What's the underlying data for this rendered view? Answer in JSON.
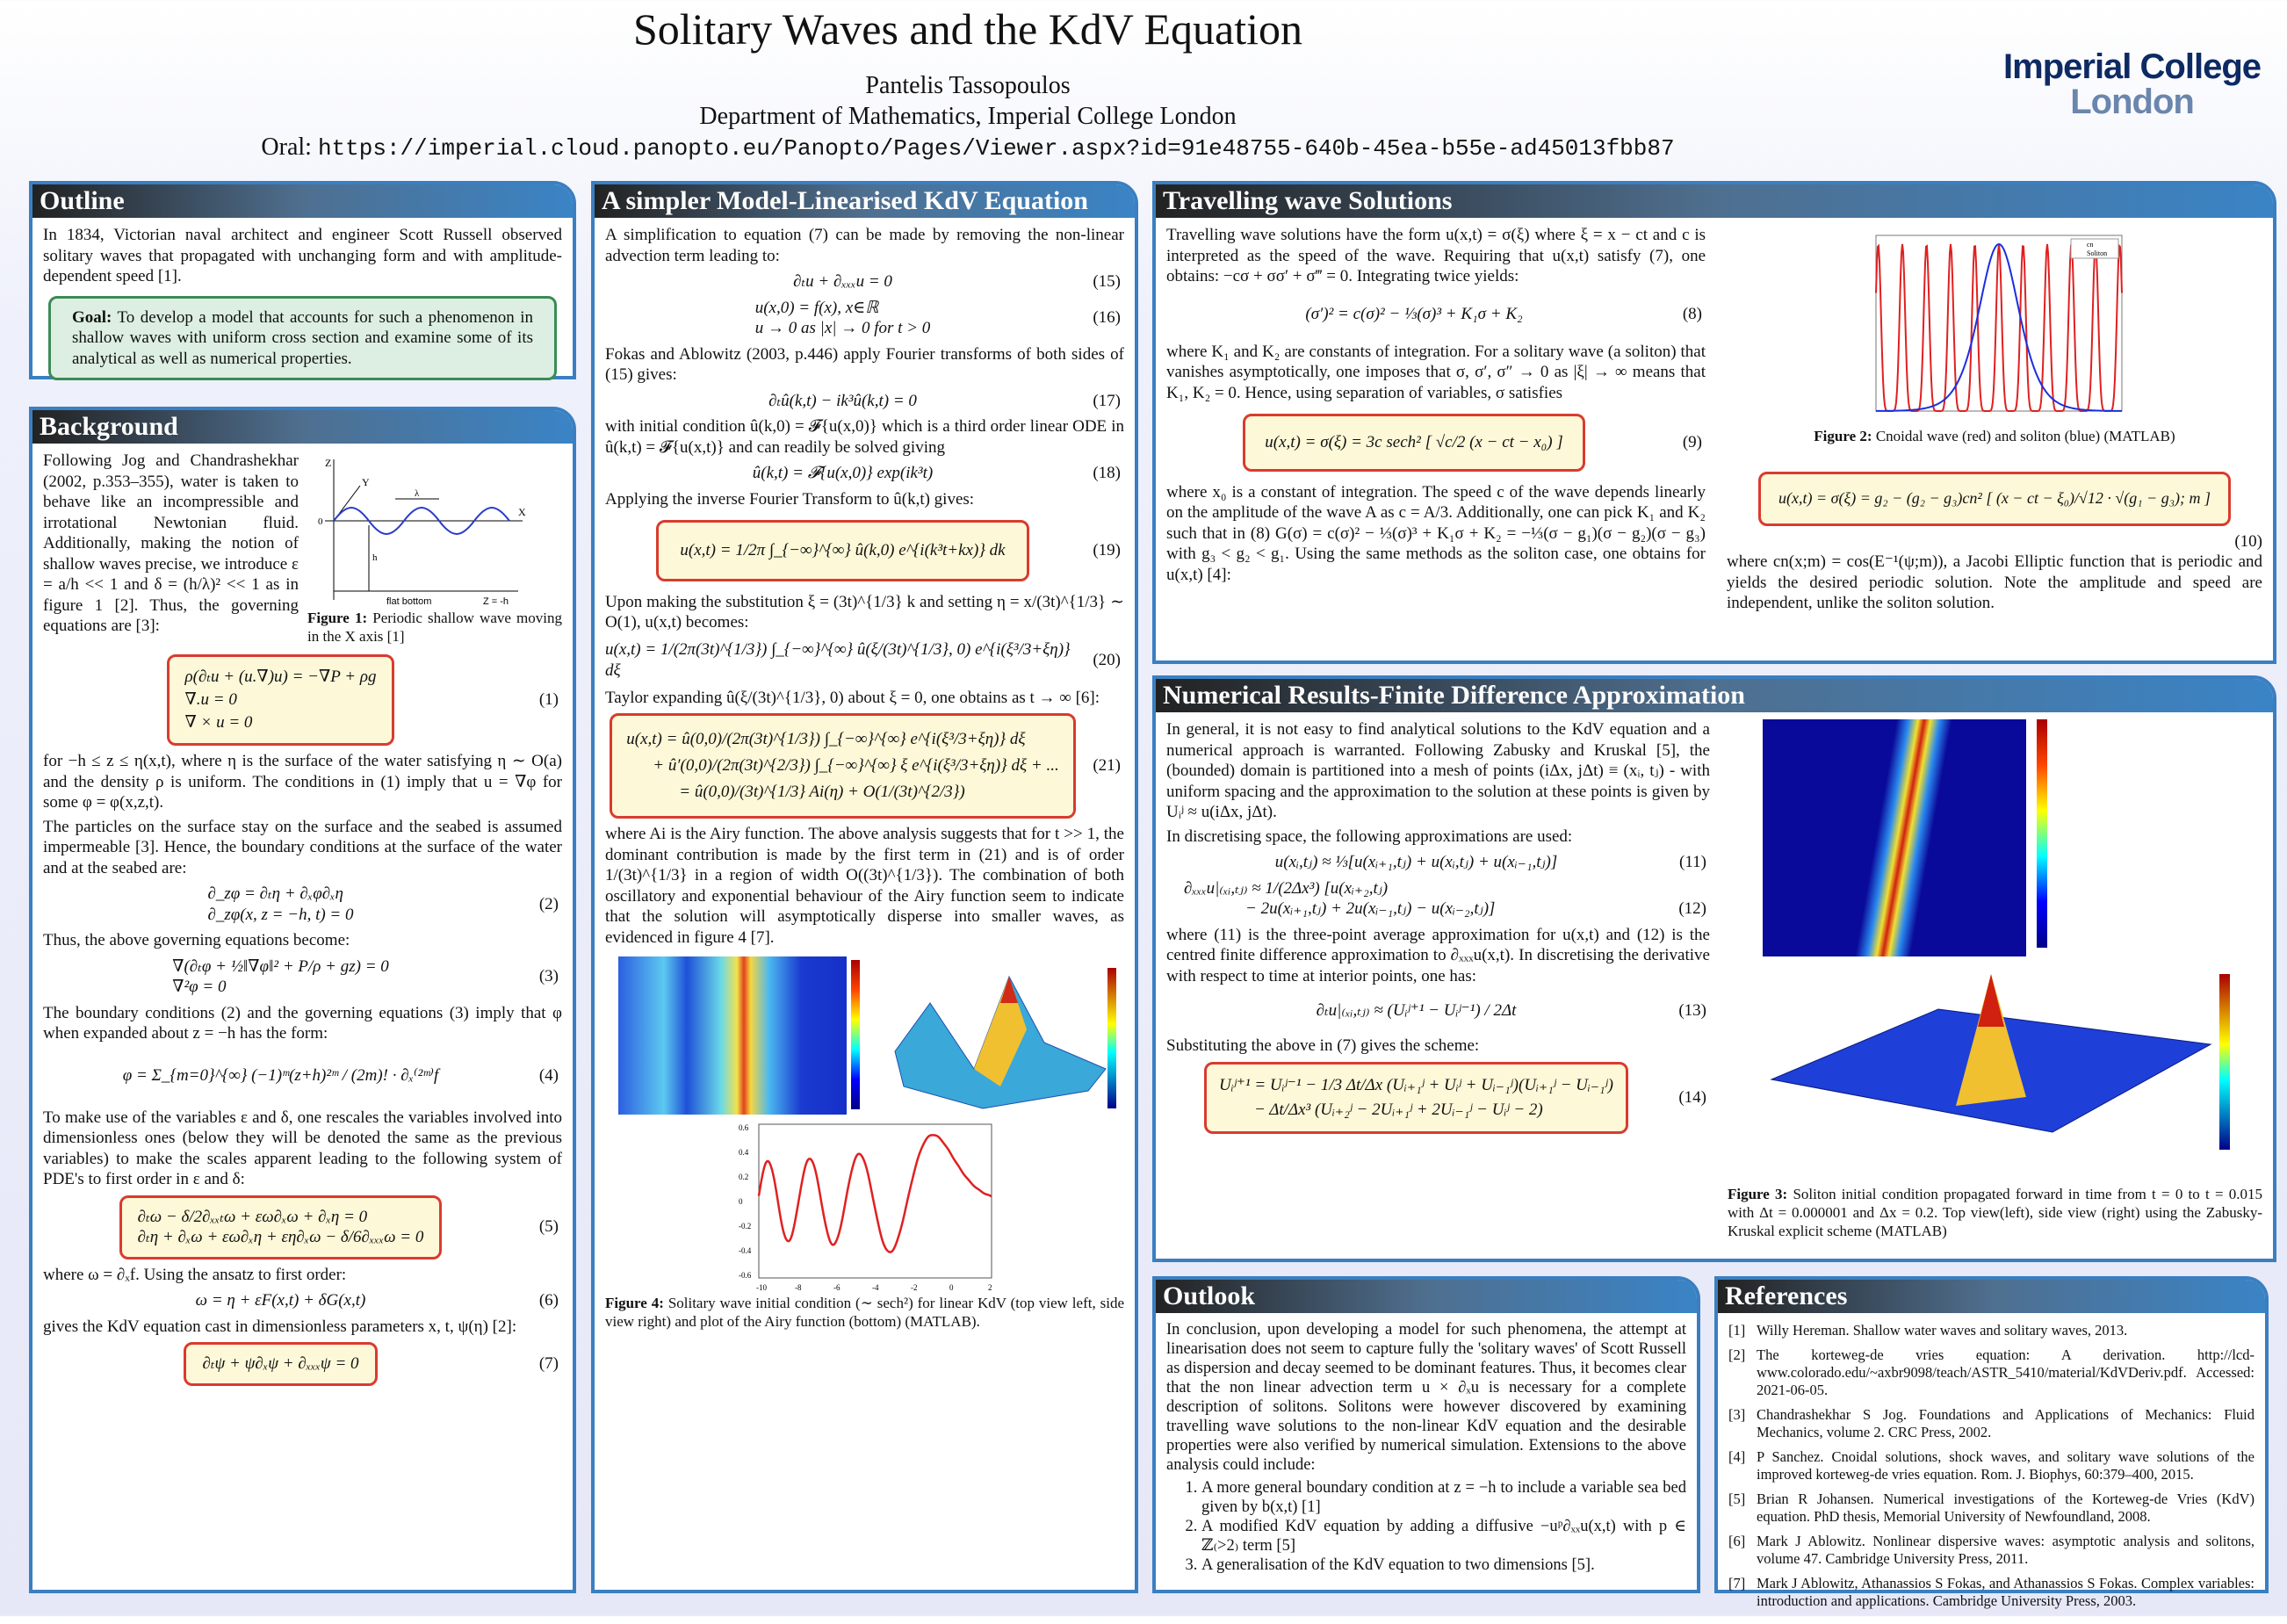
{
  "header": {
    "title": "Solitary Waves and the KdV Equation",
    "author": "Pantelis Tassopoulos",
    "department": "Department of Mathematics, Imperial College London",
    "oral_label": "Oral:",
    "oral_url": "https://imperial.cloud.panopto.eu/Panopto/Pages/Viewer.aspx?id=91e48755-640b-45ea-b55e-ad45013fbb87",
    "logo_line1": "Imperial College",
    "logo_line2": "London"
  },
  "outline": {
    "title": "Outline",
    "text": "In 1834, Victorian naval architect and engineer Scott Russell observed solitary waves that propagated with unchanging form and with amplitude-dependent speed [1].",
    "goal_label": "Goal:",
    "goal_text": "To develop a model that accounts for such a phenomenon in shallow waves with uniform cross section and examine some of its analytical as well as numerical properties."
  },
  "background": {
    "title": "Background",
    "p1": "Following Jog and Chandrashekhar (2002, p.353–355), water is taken to behave like an incompressible and irrotational Newtonian fluid. Additionally, making the notion of shallow waves precise, we introduce ε = a/h << 1 and δ = (h/λ)² << 1 as in figure 1 [2]. Thus, the governing equations are [3]:",
    "fig1_caption_label": "Figure 1:",
    "fig1_caption": "Periodic shallow wave moving in the X axis [1]",
    "fig1_labels": {
      "z": "Z",
      "y": "Y",
      "x": "X",
      "zero": "0",
      "h": "h",
      "lambda": "λ",
      "bottom": "flat bottom",
      "zh": "Z = -h"
    },
    "eq1": [
      "ρ(∂ₜu + (u.∇)u) = −∇P + ρg",
      "∇.u = 0",
      "∇ × u = 0"
    ],
    "eq1_n": "(1)",
    "p2": "for −h ≤ z ≤ η(x,t), where η is the surface of the water satisfying η ∼ O(a) and the density ρ is uniform. The conditions in (1) imply that u = ∇φ for some φ = φ(x,z,t).",
    "p3": "The particles on the surface stay on the surface and the seabed is assumed impermeable [3]. Hence, the boundary conditions at the surface of the water and at the seabed are:",
    "eq2": [
      "∂_zφ = ∂ₜη + ∂ₓφ∂ₓη",
      "∂_zφ(x, z = −h, t) = 0"
    ],
    "eq2_n": "(2)",
    "p4": "Thus, the above governing equations become:",
    "eq3": [
      "∇(∂ₜφ + ½‖∇φ‖² + P/ρ + gz) = 0",
      "∇²φ = 0"
    ],
    "eq3_n": "(3)",
    "p5": "The boundary conditions (2) and the governing equations (3) imply that φ when expanded about z = −h has the form:",
    "eq4": "φ = Σ_{m=0}^{∞} (−1)ᵐ(z+h)²ᵐ / (2m)! · ∂ₓ⁽²ᵐ⁾f",
    "eq4_n": "(4)",
    "p6": "To make use of the variables ε and δ, one rescales the variables involved into dimensionless ones (below they will be denoted the same as the previous variables) to make the scales apparent leading to the following system of PDE's to first order in ε and δ:",
    "eq5": [
      "∂ₜω − δ/2∂ₓₓₜω + εω∂ₓω + ∂ₓη = 0",
      "∂ₜη + ∂ₓω + εω∂ₓη + εη∂ₓω − δ/6∂ₓₓₓω = 0"
    ],
    "eq5_n": "(5)",
    "p7": "where ω = ∂ₓf. Using the ansatz to first order:",
    "eq6": "ω = η + εF(x,t) + δG(x,t)",
    "eq6_n": "(6)",
    "p8": "gives the KdV equation cast in dimensionless parameters x, t, ψ(η) [2]:",
    "eq7": "∂ₜψ + ψ∂ₓψ + ∂ₓₓₓψ = 0",
    "eq7_n": "(7)"
  },
  "linear": {
    "title": "A simpler Model-Linearised KdV Equation",
    "p1": "A simplification to equation (7) can be made by removing the non-linear advection term leading to:",
    "eq15": "∂ₜu + ∂ₓₓₓu = 0",
    "eq15_n": "(15)",
    "eq16": [
      "u(x,0) = f(x), x∈ℝ",
      "u → 0 as |x| → 0 for t > 0"
    ],
    "eq16_n": "(16)",
    "p2": "Fokas and Ablowitz (2003, p.446) apply Fourier transforms of both sides of (15) gives:",
    "eq17": "∂ₜû(k,t) − ik³û(k,t) = 0",
    "eq17_n": "(17)",
    "p3": "with initial condition û(k,0) = 𝓕{u(x,0)} which is a third order linear ODE in û(k,t) = 𝓕{u(x,t)} and can readily be solved giving",
    "eq18": "û(k,t) = 𝓕{u(x,0)} exp(ik³t)",
    "eq18_n": "(18)",
    "p4": "Applying the inverse Fourier Transform to û(k,t) gives:",
    "eq19": "u(x,t) = 1/2π ∫_{−∞}^{∞} û(k,0) e^{i(k³t+kx)} dk",
    "eq19_n": "(19)",
    "p5": "Upon making the substitution ξ = (3t)^{1/3} k and setting η = x/(3t)^{1/3} ∼ O(1), u(x,t) becomes:",
    "eq20": "u(x,t) = 1/(2π(3t)^{1/3}) ∫_{−∞}^{∞} û(ξ/(3t)^{1/3}, 0) e^{i(ξ³/3+ξη)} dξ",
    "eq20_n": "(20)",
    "p6": "Taylor expanding û(ξ/(3t)^{1/3}, 0) about ξ = 0, one obtains as t → ∞ [6]:",
    "eq21": [
      "u(x,t) = û(0,0)/(2π(3t)^{1/3}) ∫_{−∞}^{∞} e^{i(ξ³/3+ξη)} dξ",
      "+ û′(0,0)/(2π(3t)^{2/3}) ∫_{−∞}^{∞} ξ e^{i(ξ³/3+ξη)} dξ + ...",
      "= û(0,0)/(3t)^{1/3} Ai(η) + O(1/(3t)^{2/3})"
    ],
    "eq21_n": "(21)",
    "p7": "where Ai is the Airy function. The above analysis suggests that for t >> 1, the dominant contribution is made by the first term in (21) and is of order 1/(3t)^{1/3} in a region of width O((3t)^{1/3}). The combination of both oscillatory and exponential behaviour of the Airy function seem to indicate that the solution will asymptotically disperse into smaller waves, as evidenced in figure 4 [7].",
    "fig4_caption_label": "Figure 4:",
    "fig4_caption": "Solitary wave initial condition (∼ sech²) for linear KdV (top view left, side view right) and plot of the Airy function (bottom) (MATLAB).",
    "airy_yticks": [
      "0.6",
      "0.4",
      "0.2",
      "0",
      "-0.2",
      "-0.4",
      "-0.6"
    ],
    "airy_xticks": [
      "-10",
      "-8",
      "-6",
      "-4",
      "-2",
      "0",
      "2"
    ]
  },
  "travelling": {
    "title": "Travelling wave Solutions",
    "p1": "Travelling wave solutions have the form u(x,t) = σ(ξ) where ξ = x − ct and c is interpreted as the speed of the wave. Requiring that u(x,t) satisfy (7), one obtains: −cσ + σσ′ + σ‴ = 0. Integrating twice yields:",
    "eq8": "(σ′)² = c(σ)² − ⅓(σ)³ + K₁σ + K₂",
    "eq8_n": "(8)",
    "p2": "where K₁ and K₂ are constants of integration. For a solitary wave (a soliton) that vanishes asymptotically, one imposes that σ, σ′, σ″ → 0 as |ξ| → ∞ means that K₁, K₂ = 0. Hence, using separation of variables, σ satisfies",
    "eq9": "u(x,t) = σ(ξ) = 3c sech² [ √c/2 (x − ct − x₀) ]",
    "eq9_n": "(9)",
    "p3": "where x₀ is a constant of integration. The speed c of the wave depends linearly on the amplitude of the wave A as c = A/3. Additionally, one can pick K₁ and K₂ such that in (8) G(σ) = c(σ)² − ⅓(σ)³ + K₁σ + K₂ = −⅓(σ − g₁)(σ − g₂)(σ − g₃) with g₃ < g₂ < g₁. Using the same methods as the soliton case, one obtains for u(x,t) [4]:",
    "fig2_caption_label": "Figure 2:",
    "fig2_caption": "Cnoidal wave (red) and soliton (blue) (MATLAB)",
    "fig2_legend": [
      "cn",
      "Soliton"
    ],
    "eq10": "u(x,t) = σ(ξ) = g₂ − (g₂ − g₃)cn² [ (x − ct − ξ₀)/√12 · √(g₁ − g₃); m ]",
    "eq10_n": "(10)",
    "p4": "where cn(x;m) = cos(E⁻¹(ψ;m)), a Jacobi Elliptic function that is periodic and yields the desired periodic solution. Note the amplitude and speed are independent, unlike the soliton solution."
  },
  "numerical": {
    "title": "Numerical Results-Finite Difference Approximation",
    "p1": "In general, it is not easy to find analytical solutions to the KdV equation and a numerical approach is warranted. Following Zabusky and Kruskal [5], the (bounded) domain is partitioned into a mesh of points (iΔx, jΔt) ≡ (xᵢ, tⱼ) - with uniform spacing and the approximation to the solution at these points is given by Uᵢʲ ≈ u(iΔx, jΔt).",
    "p2": "In discretising space, the following approximations are used:",
    "eq11": "u(xᵢ,tⱼ) ≈ ⅓[u(xᵢ₊₁,tⱼ) + u(xᵢ,tⱼ) + u(xᵢ₋₁,tⱼ)]",
    "eq11_n": "(11)",
    "eq12a": "∂ₓₓₓu|₍ₓᵢ,ₜⱼ₎ ≈ 1/(2Δx³) [u(xᵢ₊₂,tⱼ)",
    "eq12b": "− 2u(xᵢ₊₁,tⱼ) + 2u(xᵢ₋₁,tⱼ) − u(xᵢ₋₂,tⱼ)]",
    "eq12_n": "(12)",
    "p3": "where (11) is the three-point average approximation for u(x,t) and (12) is the centred finite difference approximation to ∂ₓₓₓu(x,t). In discretising the derivative with respect to time at interior points, one has:",
    "eq13": "∂ₜu|₍ₓᵢ,ₜⱼ₎ ≈ (Uᵢʲ⁺¹ − Uᵢʲ⁻¹) / 2Δt",
    "eq13_n": "(13)",
    "p4": "Substituting the above in (7) gives the scheme:",
    "eq14a": "Uᵢʲ⁺¹ = Uᵢʲ⁻¹ − 1/3 Δt/Δx (Uᵢ₊₁ʲ + Uᵢʲ + Uᵢ₋₁ʲ)(Uᵢ₊₁ʲ − Uᵢ₋₁ʲ)",
    "eq14b": "− Δt/Δx³ (Uᵢ₊₂ʲ − 2Uᵢ₊₁ʲ + 2Uᵢ₋₁ʲ − Uᵢʲ − 2)",
    "eq14_n": "(14)",
    "fig3_caption_label": "Figure 3:",
    "fig3_caption": "Soliton initial condition propagated forward in time from t = 0 to t = 0.015 with Δt = 0.000001 and Δx = 0.2. Top view(left), side view (right) using the Zabusky-Kruskal explicit scheme (MATLAB)"
  },
  "outlook": {
    "title": "Outlook",
    "p1": "In conclusion, upon developing a model for such phenomena, the attempt at linearisation does not seem to capture fully the 'solitary waves' of Scott Russell as dispersion and decay seemed to be dominant features. Thus, it becomes clear that the non linear advection term u × ∂ₓu is necessary for a complete description of solitons. Solitons were however discovered by examining travelling wave solutions to the non-linear KdV equation and the desirable properties were also verified by numerical simulation. Extensions to the above analysis could include:",
    "items": [
      "A more general boundary condition at z = −h to include a variable sea bed given by b(x,t) [1]",
      "A modified KdV equation by adding a diffusive −uᵖ∂ₓₓu(x,t) with p ∈ ℤ₍>2₎ term [5]",
      "A generalisation of the KdV equation to two dimensions [5]."
    ]
  },
  "references": {
    "title": "References",
    "items": [
      {
        "n": "[1]",
        "text": "Willy Hereman. Shallow water waves and solitary waves, 2013."
      },
      {
        "n": "[2]",
        "text": "The korteweg-de vries equation: A derivation. http://lcd-www.colorado.edu/~axbr9098/teach/ASTR_5410/material/KdVDeriv.pdf. Accessed: 2021-06-05."
      },
      {
        "n": "[3]",
        "text": "Chandrashekhar S Jog. Foundations and Applications of Mechanics: Fluid Mechanics, volume 2. CRC Press, 2002."
      },
      {
        "n": "[4]",
        "text": "P Sanchez. Cnoidal solutions, shock waves, and solitary wave solutions of the improved korteweg-de vries equation. Rom. J. Biophys, 60:379–400, 2015."
      },
      {
        "n": "[5]",
        "text": "Brian R Johansen. Numerical investigations of the Korteweg-de Vries (KdV) equation. PhD thesis, Memorial University of Newfoundland, 2008."
      },
      {
        "n": "[6]",
        "text": "Mark J Ablowitz. Nonlinear dispersive waves: asymptotic analysis and solitons, volume 47. Cambridge University Press, 2011."
      },
      {
        "n": "[7]",
        "text": "Mark J Ablowitz, Athanassios S Fokas, and Athanassios S Fokas. Complex variables: introduction and applications. Cambridge University Press, 2003."
      }
    ]
  },
  "colors": {
    "box_border": "#3a7fc1",
    "highlight_border": "#d93b2f",
    "highlight_bg": "#fdf8d8",
    "goal_border": "#3c8a56",
    "goal_bg": "#dcefe2",
    "cnoidal": "#e02020",
    "soliton": "#1a2ee0",
    "logo": "#0d2a63"
  }
}
